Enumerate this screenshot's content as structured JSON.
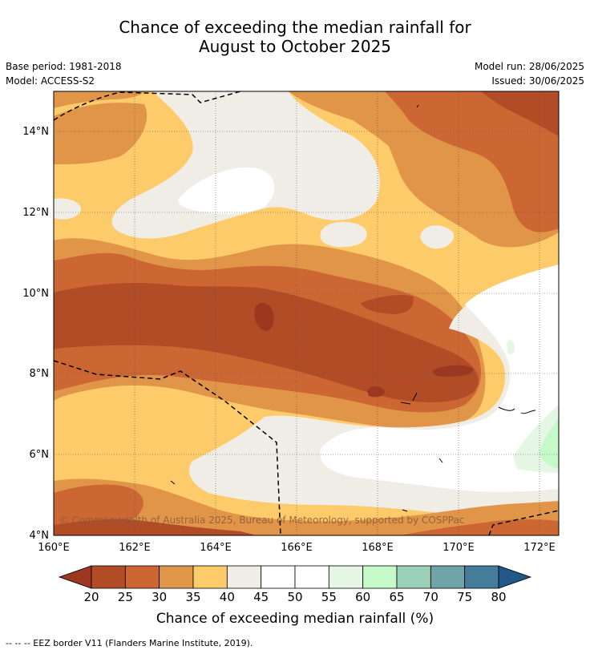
{
  "title": {
    "line1": "Chance of exceeding the median rainfall for",
    "line2": "August to October 2025"
  },
  "meta": {
    "base_period": "Base period: 1981-2018",
    "model": "Model: ACCESS-S2",
    "model_run": "Model run: 28/06/2025",
    "issued": "Issued: 30/06/2025"
  },
  "map": {
    "copyright": "© Commonwealth of Australia 2025, Bureau of Meteorology, supported by COSPPac",
    "lon_ticks": [
      "160°E",
      "162°E",
      "164°E",
      "166°E",
      "168°E",
      "170°E",
      "172°E"
    ],
    "lat_ticks": [
      "14°N",
      "12°N",
      "10°N",
      "8°N",
      "6°N",
      "4°N"
    ],
    "lon_range": [
      160,
      172.5
    ],
    "lat_range": [
      4,
      14.9
    ]
  },
  "colorbar": {
    "ticks": [
      "20",
      "25",
      "30",
      "35",
      "40",
      "45",
      "50",
      "55",
      "60",
      "65",
      "70",
      "75",
      "80"
    ],
    "colors": [
      "#9c3720",
      "#b24c26",
      "#cc6632",
      "#e09549",
      "#fecb6a",
      "#f0ede6",
      "#ffffff",
      "#ffffff",
      "#e6f6e4",
      "#c5f9c8",
      "#9ccfb8",
      "#70a4a9",
      "#447c9a"
    ],
    "low_color": "#9c3720",
    "high_color": "#1f5889",
    "title": "Chance of exceeding median rainfall (%)"
  },
  "footnote": "--  --  -- EEZ border V11 (Flanders Marine Institute, 2019)."
}
